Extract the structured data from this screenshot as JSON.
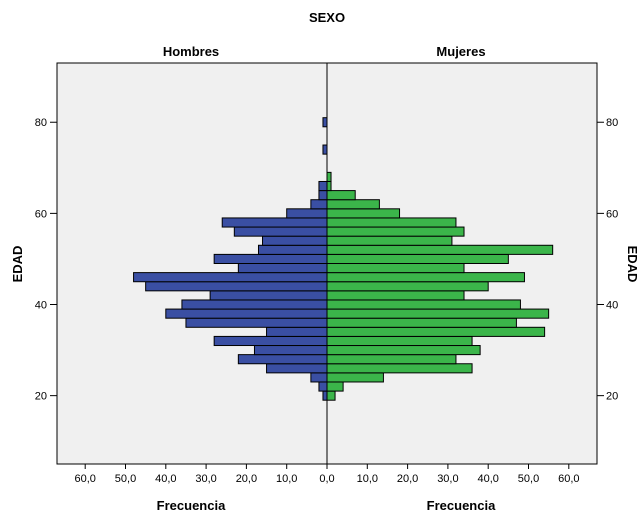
{
  "chart_data": {
    "type": "bar",
    "subtype": "population-pyramid",
    "title": "SEXO",
    "panels": [
      {
        "name": "Hombres",
        "xlabel": "Frecuencia",
        "color": "#3a4fa3",
        "direction": "left"
      },
      {
        "name": "Mujeres",
        "xlabel": "Frecuencia",
        "color": "#3bb54a",
        "direction": "right"
      }
    ],
    "ylabel": "EDAD",
    "ylim": [
      5,
      93
    ],
    "xlim": [
      0,
      60
    ],
    "x_tick_labels": [
      "60,0",
      "50,0",
      "40,0",
      "30,0",
      "20,0",
      "10,0",
      "0,0"
    ],
    "y_ticks": [
      20,
      40,
      60,
      80
    ],
    "y_tick_labels": [
      "20",
      "40",
      "60",
      "80"
    ],
    "bin_width": 2,
    "bins": [
      {
        "age": 20,
        "hombres": 1,
        "mujeres": 2
      },
      {
        "age": 22,
        "hombres": 2,
        "mujeres": 4
      },
      {
        "age": 24,
        "hombres": 4,
        "mujeres": 14
      },
      {
        "age": 26,
        "hombres": 15,
        "mujeres": 36
      },
      {
        "age": 28,
        "hombres": 22,
        "mujeres": 32
      },
      {
        "age": 30,
        "hombres": 18,
        "mujeres": 38
      },
      {
        "age": 32,
        "hombres": 28,
        "mujeres": 36
      },
      {
        "age": 34,
        "hombres": 15,
        "mujeres": 54
      },
      {
        "age": 36,
        "hombres": 35,
        "mujeres": 47
      },
      {
        "age": 38,
        "hombres": 40,
        "mujeres": 55
      },
      {
        "age": 40,
        "hombres": 36,
        "mujeres": 48
      },
      {
        "age": 42,
        "hombres": 29,
        "mujeres": 34
      },
      {
        "age": 44,
        "hombres": 45,
        "mujeres": 40
      },
      {
        "age": 46,
        "hombres": 48,
        "mujeres": 49
      },
      {
        "age": 48,
        "hombres": 22,
        "mujeres": 34
      },
      {
        "age": 50,
        "hombres": 28,
        "mujeres": 45
      },
      {
        "age": 52,
        "hombres": 17,
        "mujeres": 56
      },
      {
        "age": 54,
        "hombres": 16,
        "mujeres": 31
      },
      {
        "age": 56,
        "hombres": 23,
        "mujeres": 34
      },
      {
        "age": 58,
        "hombres": 26,
        "mujeres": 32
      },
      {
        "age": 60,
        "hombres": 10,
        "mujeres": 18
      },
      {
        "age": 62,
        "hombres": 4,
        "mujeres": 13
      },
      {
        "age": 64,
        "hombres": 2,
        "mujeres": 7
      },
      {
        "age": 66,
        "hombres": 2,
        "mujeres": 1
      },
      {
        "age": 68,
        "hombres": 0,
        "mujeres": 1
      },
      {
        "age": 74,
        "hombres": 1,
        "mujeres": 0
      },
      {
        "age": 80,
        "hombres": 1,
        "mujeres": 0
      }
    ]
  }
}
